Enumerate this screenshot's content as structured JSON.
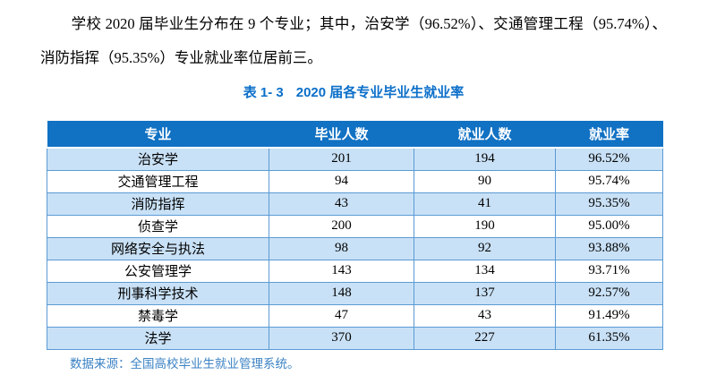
{
  "paragraph": {
    "text": "学校 2020 届毕业生分布在 9 个专业；其中，治安学（96.52%）、交通管理工程（95.74%）、消防指挥（95.35%）专业就业率位居前三。"
  },
  "table": {
    "caption_label": "表 1- 3",
    "caption_title": "2020 届各专业毕业生就业率",
    "headers": [
      "专业",
      "毕业人数",
      "就业人数",
      "就业率"
    ],
    "rows": [
      [
        "治安学",
        "201",
        "194",
        "96.52%"
      ],
      [
        "交通管理工程",
        "94",
        "90",
        "95.74%"
      ],
      [
        "消防指挥",
        "43",
        "41",
        "95.35%"
      ],
      [
        "侦查学",
        "200",
        "190",
        "95.00%"
      ],
      [
        "网络安全与执法",
        "98",
        "92",
        "93.88%"
      ],
      [
        "公安管理学",
        "143",
        "134",
        "93.71%"
      ],
      [
        "刑事科学技术",
        "148",
        "137",
        "92.57%"
      ],
      [
        "禁毒学",
        "47",
        "43",
        "91.49%"
      ],
      [
        "法学",
        "370",
        "227",
        "61.35%"
      ]
    ],
    "source_note": "数据来源：全国高校毕业生就业管理系统。"
  },
  "colors": {
    "header_bg": "#1171C3",
    "header_text": "#FFFFFF",
    "row_stripe": "#C9E1F6",
    "row_plain": "#FFFFFF",
    "table_border": "#5B9BD5",
    "caption_blue": "#0B6FC9",
    "source_blue": "#3B82C4",
    "body_text": "#000000"
  }
}
